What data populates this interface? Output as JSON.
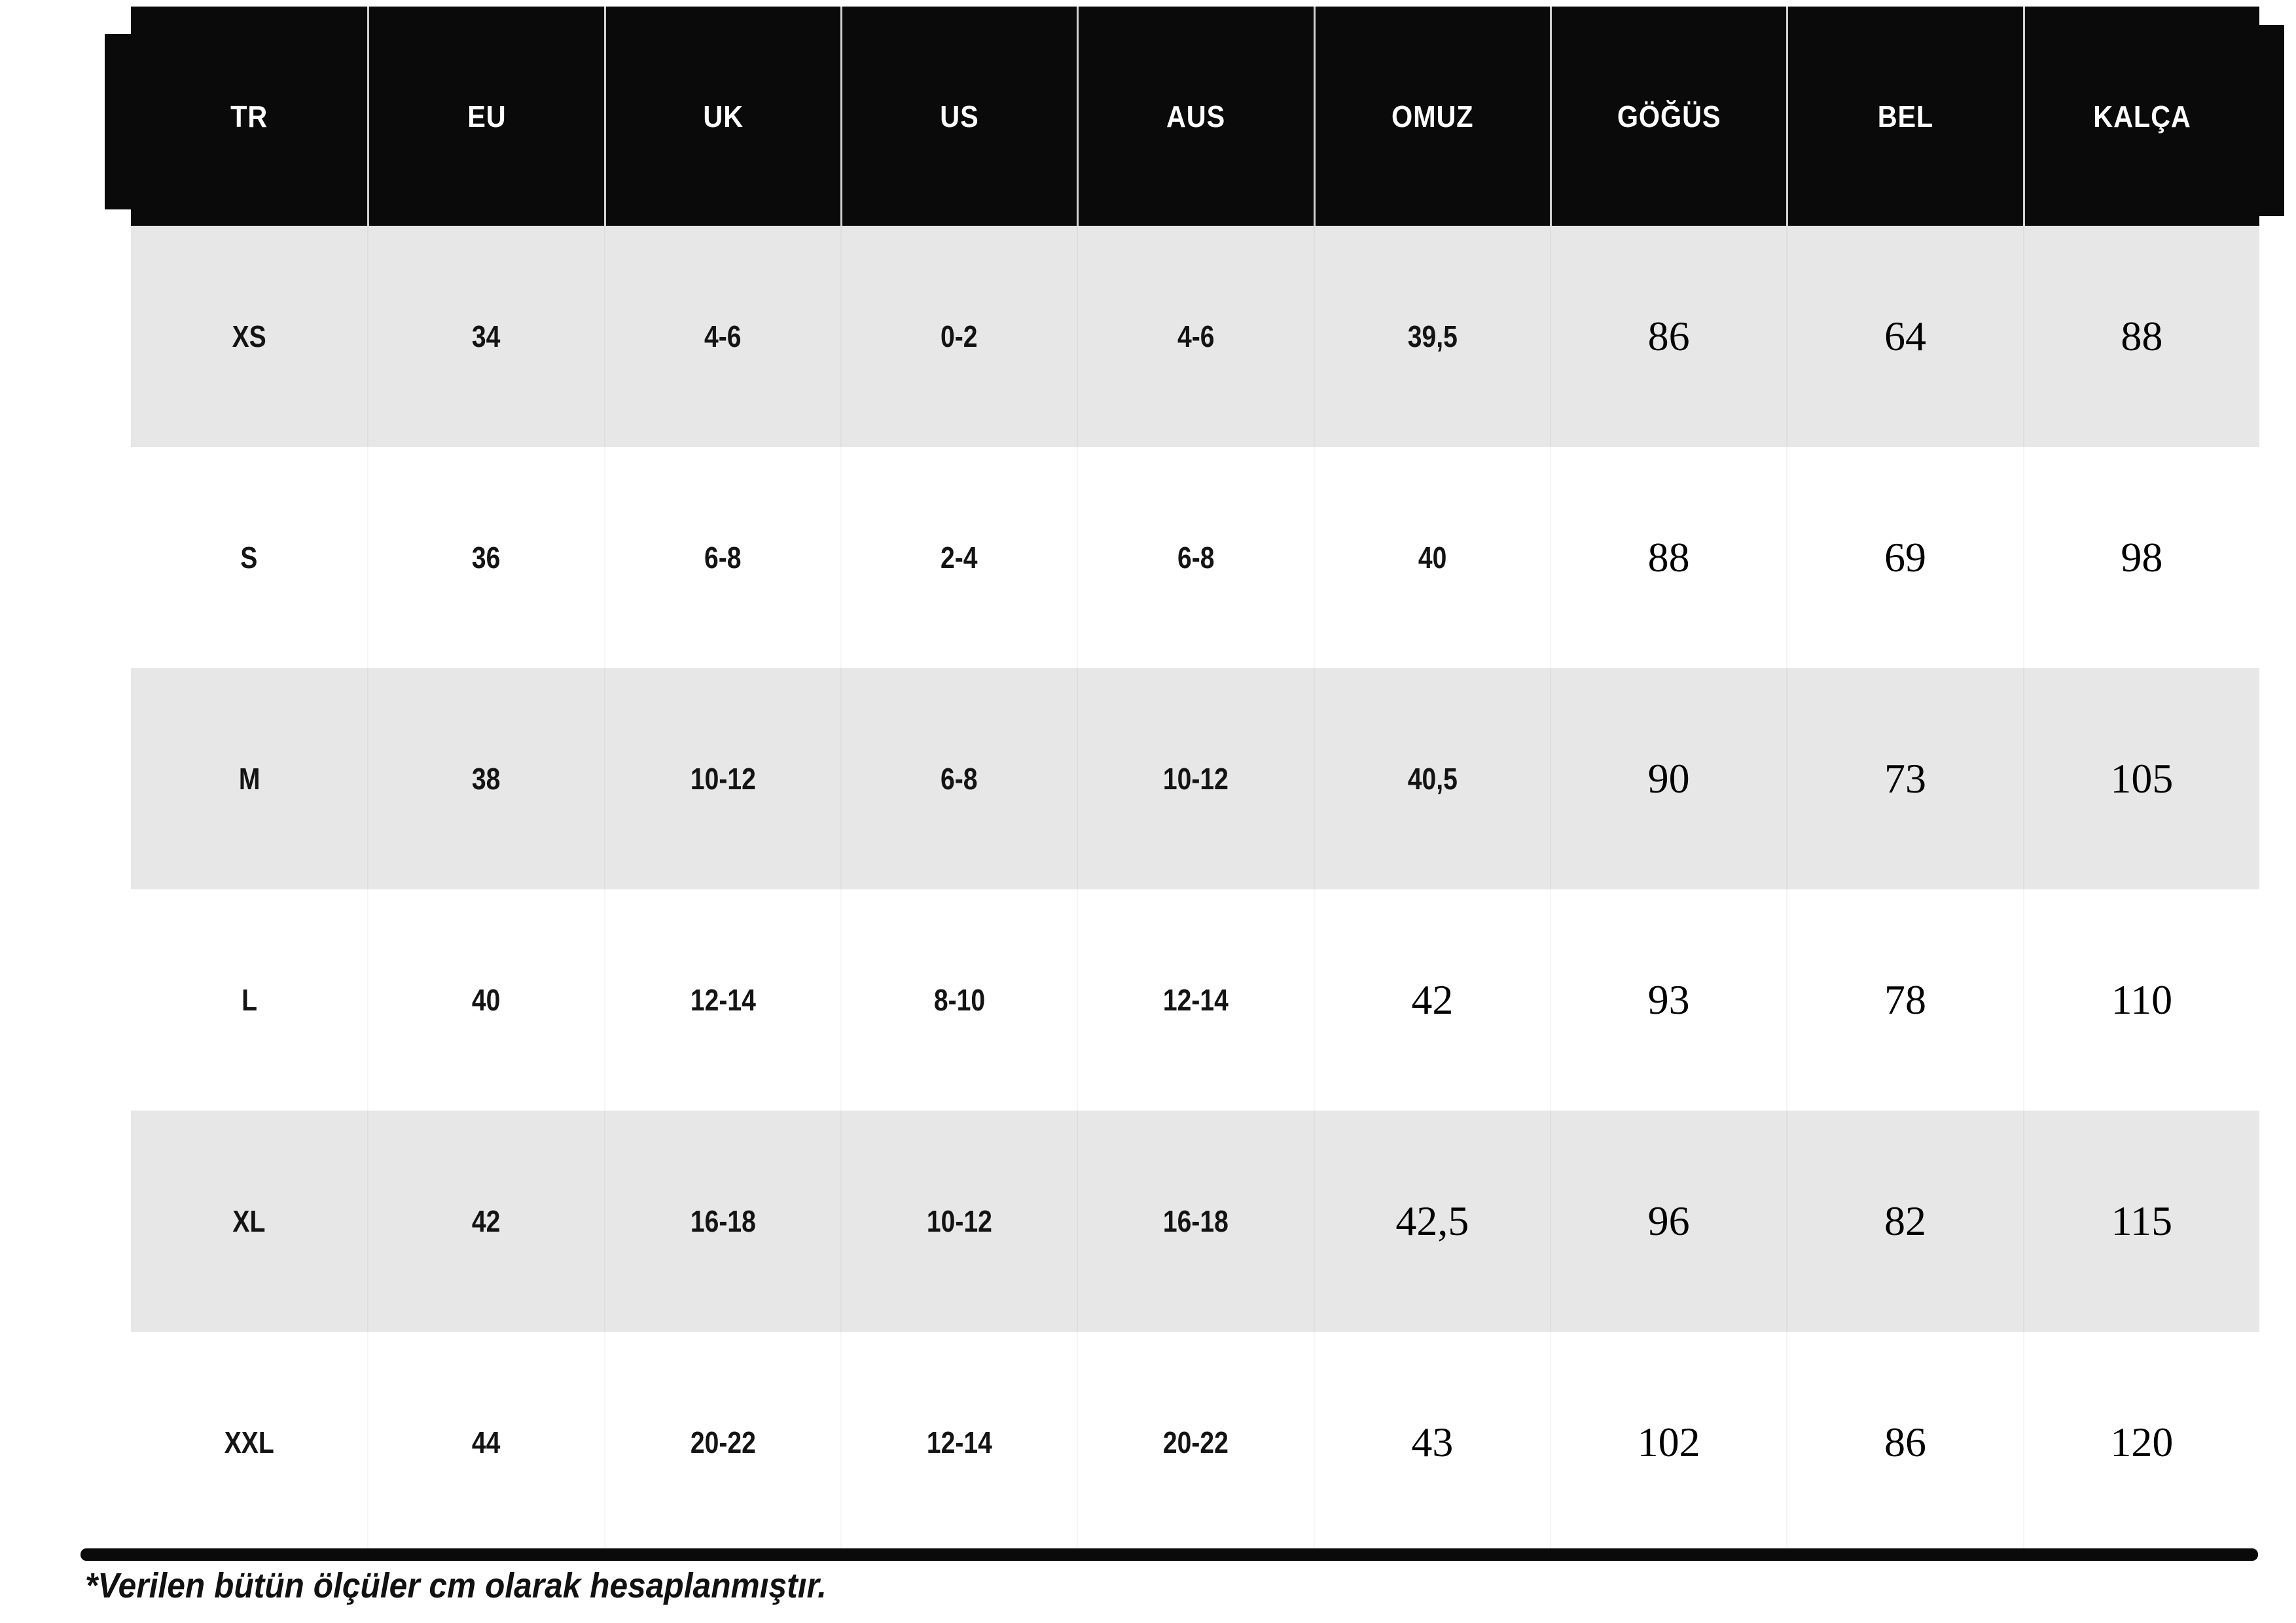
{
  "table": {
    "headers": [
      "TR",
      "EU",
      "UK",
      "US",
      "AUS",
      "OMUZ",
      "GÖĞÜS",
      "BEL",
      "KALÇA"
    ],
    "rows": [
      {
        "cells": [
          "XS",
          "34",
          "4-6",
          "0-2",
          "4-6",
          "39,5",
          "86",
          "64",
          "88"
        ]
      },
      {
        "cells": [
          "S",
          "36",
          "6-8",
          "2-4",
          "6-8",
          "40",
          "88",
          "69",
          "98"
        ]
      },
      {
        "cells": [
          "M",
          "38",
          "10-12",
          "6-8",
          "10-12",
          "40,5",
          "90",
          "73",
          "105"
        ]
      },
      {
        "cells": [
          "L",
          "40",
          "12-14",
          "8-10",
          "12-14",
          "42",
          "93",
          "78",
          "110"
        ]
      },
      {
        "cells": [
          "XL",
          "42",
          "16-18",
          "10-12",
          "16-18",
          "42,5",
          "96",
          "82",
          "115"
        ]
      },
      {
        "cells": [
          "XXL",
          "44",
          "20-22",
          "12-14",
          "20-22",
          "43",
          "102",
          "86",
          "120"
        ]
      }
    ]
  },
  "footnote": "*Verilen bütün ölçüler cm olarak hesaplanmıştır.",
  "colors": {
    "header_bg": "#0a0a0a",
    "header_text": "#ffffff",
    "stripe": "#e8e7e7",
    "rule": "#000000"
  }
}
